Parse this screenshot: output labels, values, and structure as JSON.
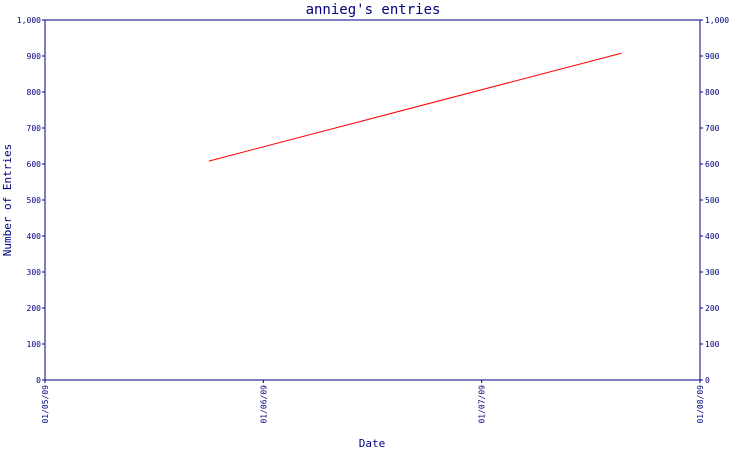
{
  "chart_data": {
    "type": "line",
    "title": "annieg's entries",
    "xlabel": "Date",
    "ylabel": "Number of Entries",
    "x_ticks": [
      "01/05/09",
      "01/06/09",
      "01/07/09",
      "01/08/09"
    ],
    "y_ticks": [
      "0",
      "100",
      "200",
      "300",
      "400",
      "500",
      "600",
      "700",
      "800",
      "900",
      "1,000"
    ],
    "ylim": [
      0,
      1000
    ],
    "xlim": [
      "2009-05-01",
      "2009-08-01"
    ],
    "series": [
      {
        "color": "#ff0000",
        "points": [
          {
            "x": "2009-05-24",
            "y": 608
          },
          {
            "x": "2009-07-21",
            "y": 908
          }
        ]
      }
    ],
    "grid": false,
    "axis_color": "#000080"
  }
}
